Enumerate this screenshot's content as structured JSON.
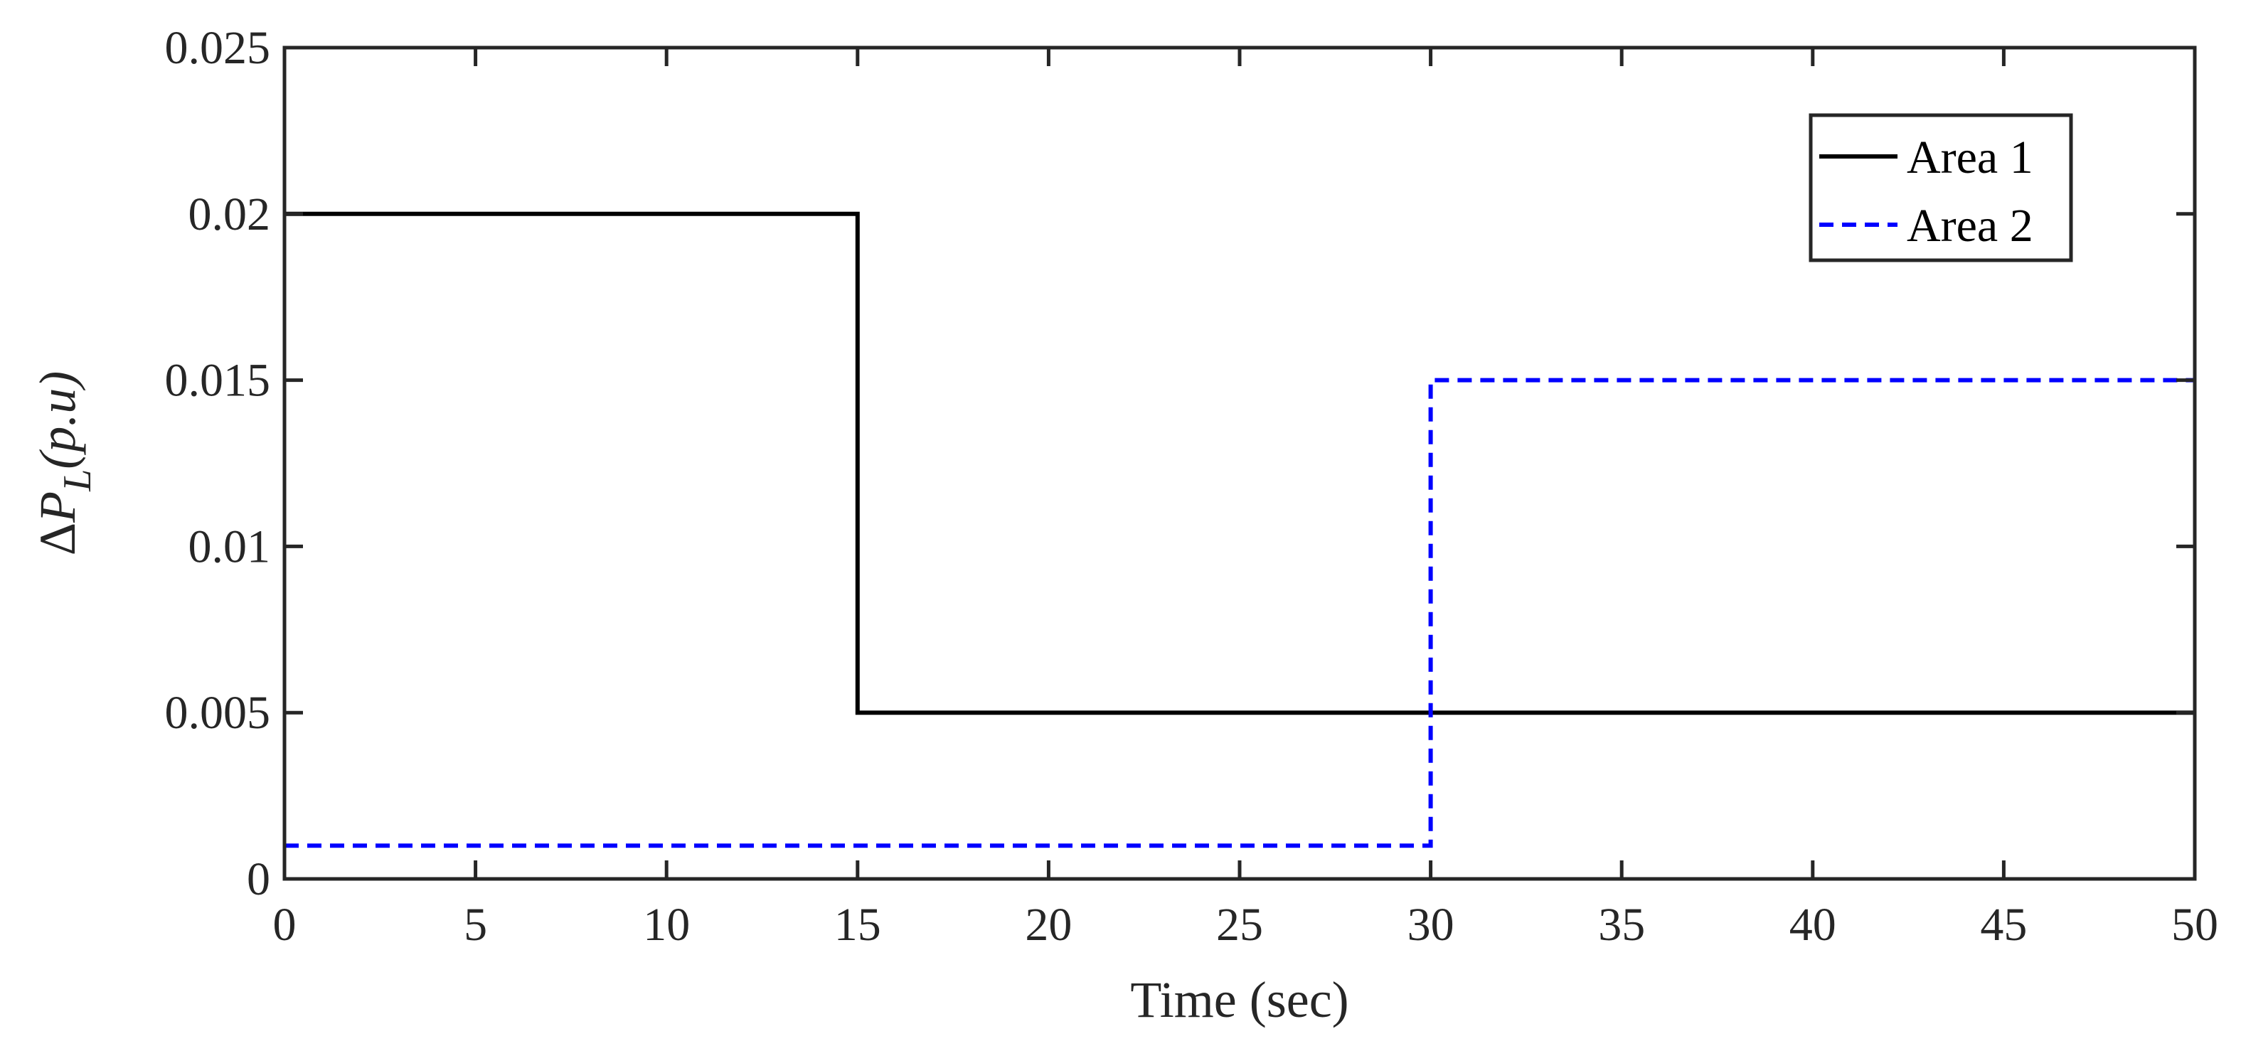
{
  "chart_data": {
    "type": "line",
    "title": "",
    "xlabel": "Time (sec)",
    "ylabel": {
      "delta": "Δ",
      "var": "P",
      "sub": "L",
      "unit": "(p.u)"
    },
    "xlim": [
      0,
      50
    ],
    "ylim": [
      0,
      0.025
    ],
    "x_ticks": [
      0,
      5,
      10,
      15,
      20,
      25,
      30,
      35,
      40,
      45,
      50
    ],
    "x_tick_labels": [
      "0",
      "5",
      "10",
      "15",
      "20",
      "25",
      "30",
      "35",
      "40",
      "45",
      "50"
    ],
    "y_ticks": [
      0,
      0.005,
      0.01,
      0.015,
      0.02,
      0.025
    ],
    "y_tick_labels": [
      "0",
      "0.005",
      "0.01",
      "0.015",
      "0.02",
      "0.025"
    ],
    "grid": false,
    "legend_position": "top-right",
    "series": [
      {
        "name": "Area 1",
        "color": "#000000",
        "style": "solid",
        "points": [
          [
            0,
            0.02
          ],
          [
            15,
            0.02
          ],
          [
            15,
            0.005
          ],
          [
            50,
            0.005
          ]
        ]
      },
      {
        "name": "Area 2",
        "color": "#0000ff",
        "style": "dashed",
        "points": [
          [
            0,
            0.001
          ],
          [
            30,
            0.001
          ],
          [
            30,
            0.015
          ],
          [
            50,
            0.015
          ]
        ]
      }
    ]
  }
}
